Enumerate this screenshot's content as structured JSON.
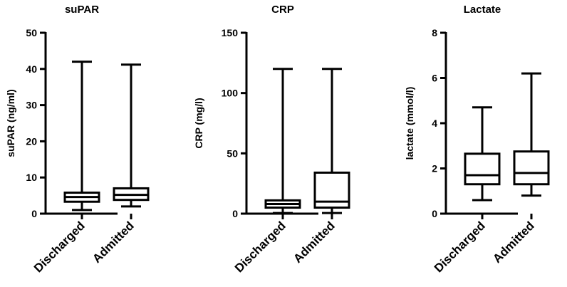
{
  "chart_data": [
    {
      "type": "box",
      "title": "suPAR",
      "ylabel": "suPAR (ng/ml)",
      "ylim": [
        0,
        50
      ],
      "yticks": [
        0,
        10,
        20,
        30,
        40,
        50
      ],
      "categories": [
        "Discharged",
        "Admitted"
      ],
      "boxes": [
        {
          "category": "Discharged",
          "min": 1,
          "q1": 3.3,
          "median": 4.6,
          "q3": 5.8,
          "max": 42
        },
        {
          "category": "Admitted",
          "min": 2,
          "q1": 3.8,
          "median": 5.2,
          "q3": 7,
          "max": 41.2
        }
      ]
    },
    {
      "type": "box",
      "title": "CRP",
      "ylabel": "CRP (mg/l)",
      "ylim": [
        0,
        150
      ],
      "yticks": [
        0,
        50,
        100,
        150
      ],
      "categories": [
        "Discharged",
        "Admitted"
      ],
      "boxes": [
        {
          "category": "Discharged",
          "min": 0.5,
          "q1": 5,
          "median": 8,
          "q3": 11,
          "max": 120
        },
        {
          "category": "Admitted",
          "min": 0.5,
          "q1": 5,
          "median": 10,
          "q3": 34,
          "max": 120
        }
      ]
    },
    {
      "type": "box",
      "title": "Lactate",
      "ylabel": "lactate (mmol/l)",
      "ylim": [
        0,
        8
      ],
      "yticks": [
        0,
        2,
        4,
        6,
        8
      ],
      "categories": [
        "Discharged",
        "Admitted"
      ],
      "boxes": [
        {
          "category": "Discharged",
          "min": 0.6,
          "q1": 1.3,
          "median": 1.7,
          "q3": 2.65,
          "max": 4.7
        },
        {
          "category": "Admitted",
          "min": 0.8,
          "q1": 1.3,
          "median": 1.8,
          "q3": 2.75,
          "max": 6.2
        }
      ]
    }
  ]
}
